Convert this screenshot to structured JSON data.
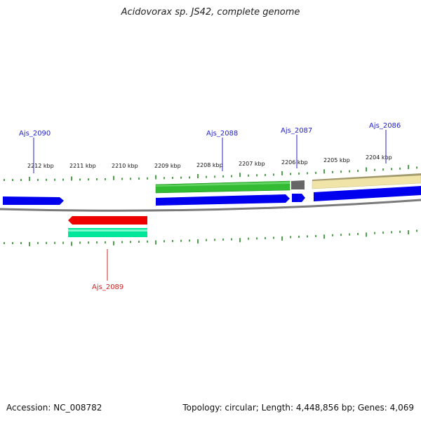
{
  "title": "Acidovorax sp. JS42, complete genome",
  "footer": {
    "accession": "Accession: NC_008782",
    "summary": "Topology: circular; Length: 4,448,856 bp; Genes: 4,069"
  },
  "colors": {
    "forward_gene": "#0000ee",
    "reverse_gene": "#ee0000",
    "forward_label": "#2222cc",
    "reverse_label": "#cc2222",
    "tick": "#228b22",
    "backbone": "#7a7a7a",
    "cds_green": "#33bb33",
    "cds_gray": "#666666",
    "cds_yellow": "#f0e4a8",
    "cds_teal": "#00e69a"
  },
  "scale_ticks": [
    "2212 kbp",
    "2211 kbp",
    "2210 kbp",
    "2209 kbp",
    "2208 kbp",
    "2207 kbp",
    "2206 kbp",
    "2205 kbp",
    "2204 kbp"
  ],
  "genes": [
    {
      "name": "Ajs_2090",
      "strand": "forward"
    },
    {
      "name": "Ajs_2089",
      "strand": "reverse"
    },
    {
      "name": "Ajs_2088",
      "strand": "forward"
    },
    {
      "name": "Ajs_2087",
      "strand": "forward"
    },
    {
      "name": "Ajs_2086",
      "strand": "forward"
    }
  ]
}
